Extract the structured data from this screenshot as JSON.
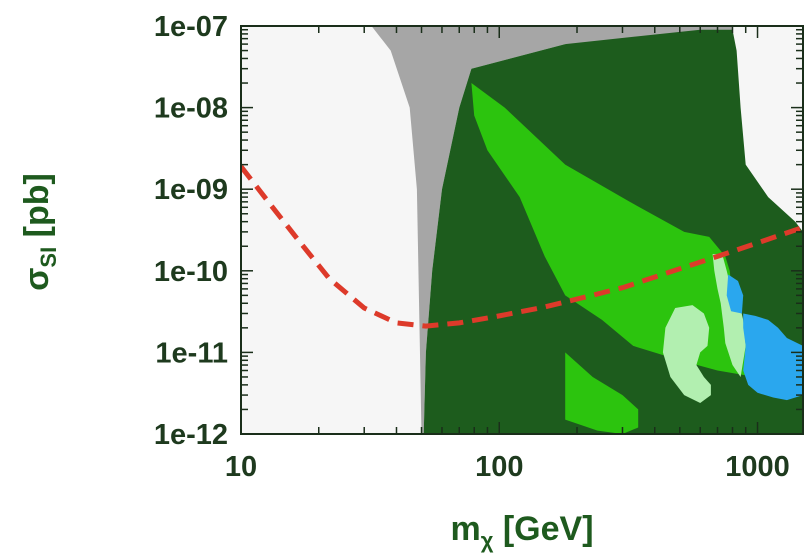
{
  "chart_data": {
    "type": "area",
    "title": "",
    "xlabel": "mχ [GeV]",
    "ylabel": "σSI [pb]",
    "xscale": "log",
    "yscale": "log",
    "xlim": [
      10,
      1500
    ],
    "ylim": [
      1e-12,
      1e-07
    ],
    "grid": false,
    "legend": "none",
    "x_ticks": [
      {
        "value": 10,
        "label": "10"
      },
      {
        "value": 100,
        "label": "100"
      },
      {
        "value": 1000,
        "label": "1000"
      }
    ],
    "y_ticks": [
      {
        "value": 1e-12,
        "label": "1e-12"
      },
      {
        "value": 1e-11,
        "label": "1e-11"
      },
      {
        "value": 1e-10,
        "label": "1e-10"
      },
      {
        "value": 1e-09,
        "label": "1e-09"
      },
      {
        "value": 1e-08,
        "label": "1e-08"
      },
      {
        "value": 1e-07,
        "label": "1e-07"
      }
    ],
    "colors": {
      "background": "#f6f6f6",
      "excluded_gray": "#a6a6a6",
      "dark_green": "#1d5c1d",
      "medium_green": "#2cc40e",
      "light_green": "#b2efb0",
      "blue": "#2aa7ee",
      "limit_line": "#dd3a2a",
      "frame": "#1a2e1a"
    },
    "regions": [
      {
        "fill": "excluded_gray",
        "points": [
          [
            32,
            1e-07
          ],
          [
            800,
            1e-07
          ],
          [
            800,
            6e-08
          ],
          [
            180,
            6e-08
          ],
          [
            78,
            3e-08
          ],
          [
            70,
            1e-08
          ],
          [
            60,
            1e-09
          ],
          [
            55,
            1e-10
          ],
          [
            52,
            1e-11
          ],
          [
            51,
            1e-12
          ],
          [
            50,
            1e-12
          ],
          [
            48,
            1e-09
          ],
          [
            45,
            1e-08
          ],
          [
            38,
            5e-08
          ],
          [
            32,
            1e-07
          ]
        ]
      },
      {
        "fill": "dark_green",
        "points": [
          [
            51,
            1e-12
          ],
          [
            52,
            1e-11
          ],
          [
            55,
            1e-10
          ],
          [
            60,
            1e-09
          ],
          [
            70,
            1e-08
          ],
          [
            78,
            3e-08
          ],
          [
            180,
            6e-08
          ],
          [
            600,
            9e-08
          ],
          [
            800,
            9e-08
          ],
          [
            830,
            5e-08
          ],
          [
            860,
            1e-08
          ],
          [
            900,
            2e-09
          ],
          [
            1100,
            8e-10
          ],
          [
            1400,
            4e-10
          ],
          [
            1500,
            3e-10
          ],
          [
            1500,
            1e-12
          ],
          [
            51,
            1e-12
          ]
        ]
      },
      {
        "fill": "medium_green",
        "points": [
          [
            78,
            2e-08
          ],
          [
            105,
            1e-08
          ],
          [
            180,
            2e-09
          ],
          [
            320,
            7e-10
          ],
          [
            520,
            3e-10
          ],
          [
            650,
            2.6e-10
          ],
          [
            750,
            1.5e-10
          ],
          [
            780,
            1e-10
          ],
          [
            800,
            5e-11
          ],
          [
            850,
            2e-11
          ],
          [
            980,
            8e-12
          ],
          [
            1500,
            4e-12
          ],
          [
            1500,
            3e-12
          ],
          [
            980,
            5e-12
          ],
          [
            700,
            6e-12
          ],
          [
            500,
            8e-12
          ],
          [
            330,
            1.2e-11
          ],
          [
            250,
            2.5e-11
          ],
          [
            180,
            5e-11
          ],
          [
            150,
            1.5e-10
          ],
          [
            120,
            8e-10
          ],
          [
            90,
            3e-09
          ],
          [
            80,
            8e-09
          ],
          [
            78,
            2e-08
          ]
        ]
      },
      {
        "fill": "medium_green",
        "points": [
          [
            180,
            1e-11
          ],
          [
            230,
            5e-12
          ],
          [
            300,
            3e-12
          ],
          [
            345,
            2e-12
          ],
          [
            345,
            1.2e-12
          ],
          [
            300,
            1e-12
          ],
          [
            240,
            1.1e-12
          ],
          [
            180,
            1.5e-12
          ],
          [
            180,
            1e-11
          ]
        ]
      },
      {
        "fill": "light_green",
        "points": [
          [
            670,
            1.6e-10
          ],
          [
            730,
            1.6e-10
          ],
          [
            760,
            1e-10
          ],
          [
            790,
            6e-11
          ],
          [
            850,
            4e-11
          ],
          [
            880,
            2.5e-11
          ],
          [
            900,
            1.2e-11
          ],
          [
            860,
            5e-12
          ],
          [
            800,
            7e-12
          ],
          [
            750,
            1.3e-11
          ],
          [
            740,
            2e-11
          ],
          [
            720,
            4e-11
          ],
          [
            700,
            6e-11
          ],
          [
            680,
            1e-10
          ],
          [
            670,
            1.6e-10
          ]
        ]
      },
      {
        "fill": "light_green",
        "points": [
          [
            480,
            3.5e-11
          ],
          [
            560,
            3.8e-11
          ],
          [
            620,
            3e-11
          ],
          [
            650,
            2e-11
          ],
          [
            640,
            1.2e-11
          ],
          [
            600,
            1e-11
          ],
          [
            580,
            7e-12
          ],
          [
            620,
            5e-12
          ],
          [
            660,
            4e-12
          ],
          [
            660,
            3e-12
          ],
          [
            600,
            2.4e-12
          ],
          [
            520,
            3e-12
          ],
          [
            460,
            5e-12
          ],
          [
            430,
            1e-11
          ],
          [
            440,
            2e-11
          ],
          [
            480,
            3.5e-11
          ]
        ]
      },
      {
        "fill": "blue",
        "points": [
          [
            770,
            9e-11
          ],
          [
            840,
            7.5e-11
          ],
          [
            880,
            5e-11
          ],
          [
            870,
            3e-11
          ],
          [
            790,
            3.2e-11
          ],
          [
            760,
            5e-11
          ],
          [
            770,
            9e-11
          ]
        ]
      },
      {
        "fill": "blue",
        "points": [
          [
            880,
            3e-11
          ],
          [
            980,
            2.8e-11
          ],
          [
            1100,
            2.5e-11
          ],
          [
            1200,
            2e-11
          ],
          [
            1300,
            1.5e-11
          ],
          [
            1500,
            1.2e-11
          ],
          [
            1500,
            3e-12
          ],
          [
            1300,
            2.6e-12
          ],
          [
            1150,
            2.8e-12
          ],
          [
            1000,
            3.2e-12
          ],
          [
            920,
            4e-12
          ],
          [
            880,
            6e-12
          ],
          [
            900,
            1.2e-11
          ],
          [
            880,
            2e-11
          ],
          [
            880,
            3e-11
          ]
        ]
      }
    ],
    "series": [
      {
        "style": "dashed",
        "color": "limit_line",
        "x": [
          10,
          13,
          17,
          22,
          30,
          40,
          52,
          70,
          100,
          150,
          200,
          300,
          450,
          700,
          1000,
          1500
        ],
        "y": [
          1.9e-09,
          6.5e-10,
          2.2e-10,
          8e-11,
          3.5e-11,
          2.3e-11,
          2.1e-11,
          2.3e-11,
          2.8e-11,
          3.6e-11,
          4.5e-11,
          6.2e-11,
          9.5e-11,
          1.5e-10,
          2.2e-10,
          3.4e-10
        ]
      }
    ]
  }
}
